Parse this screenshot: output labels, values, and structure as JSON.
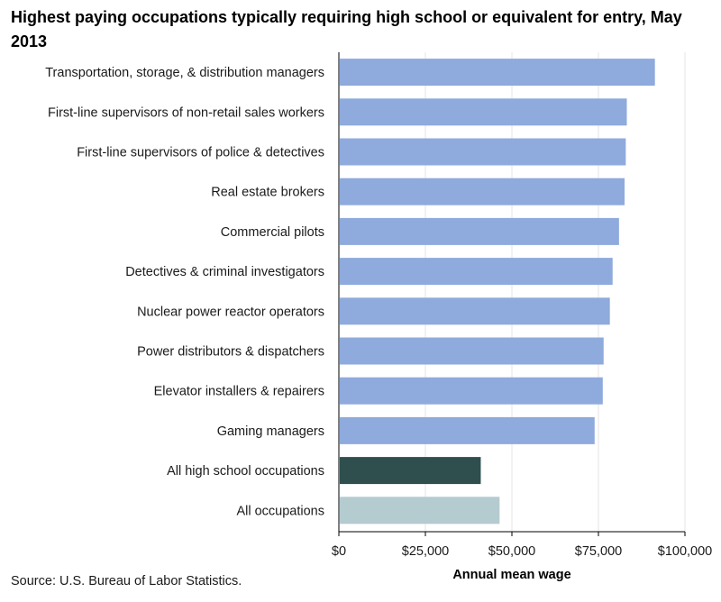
{
  "title": "Highest paying occupations typically requiring high school or equivalent for entry, May 2013",
  "source": "Source: U.S. Bureau of Labor Statistics.",
  "chart_data": {
    "type": "bar",
    "orientation": "horizontal",
    "title": "Highest paying occupations typically requiring high school or equivalent for entry, May 2013",
    "xlabel": "Annual mean wage",
    "ylabel": "",
    "xlim": [
      0,
      100000
    ],
    "xticks": [
      0,
      25000,
      50000,
      75000,
      100000
    ],
    "xtick_labels": [
      "$0",
      "$25,000",
      "$50,000",
      "$75,000",
      "$100,000"
    ],
    "grid": "vertical",
    "legend": "none",
    "categories": [
      "Transportation, storage, & distribution managers",
      "First-line supervisors of non-retail sales workers",
      "First-line supervisors of police & detectives",
      "Real estate brokers",
      "Commercial pilots",
      "Detectives & criminal investigators",
      "Nuclear power reactor operators",
      "Power distributors & dispatchers",
      "Elevator installers & repairers",
      "Gaming managers",
      "All high school occupations",
      "All occupations"
    ],
    "values": [
      91320,
      83200,
      82900,
      82550,
      80950,
      79100,
      78300,
      76500,
      76250,
      73900,
      41000,
      46440
    ],
    "colors": [
      "#8faadc",
      "#8faadc",
      "#8faadc",
      "#8faadc",
      "#8faadc",
      "#8faadc",
      "#8faadc",
      "#8faadc",
      "#8faadc",
      "#8faadc",
      "#2f4f4f",
      "#b4cbd0"
    ]
  }
}
